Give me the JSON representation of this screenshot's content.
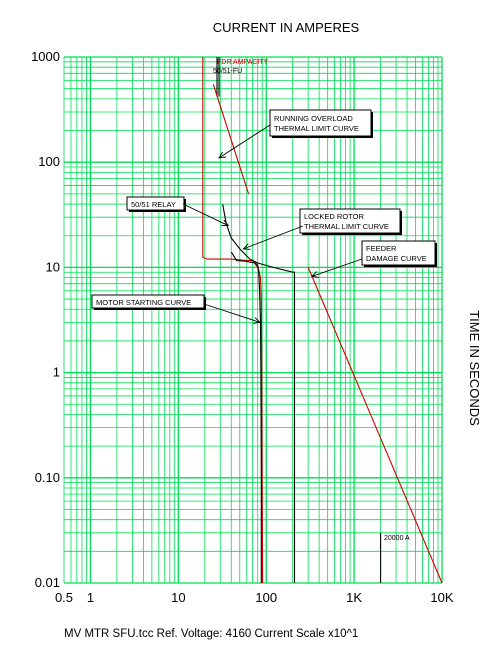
{
  "page": {
    "title": "CURRENT IN AMPERES",
    "side_title": "TIME IN SECONDS",
    "footer": "MV MTR SFU.tcc   Ref. Voltage: 4160   Current Scale x10^1"
  },
  "colors": {
    "grid": "#00dd55",
    "red_curve": "#cc0000",
    "black_curve": "#000000",
    "background": "#ffffff"
  },
  "chart_data": {
    "type": "line",
    "x_scale": "log",
    "y_scale": "log",
    "xlim": [
      0.5,
      10000
    ],
    "ylim": [
      0.01,
      1000
    ],
    "grid": true,
    "x_ticks": [
      {
        "value": 0.5,
        "label": "0.5"
      },
      {
        "value": 1,
        "label": "1"
      },
      {
        "value": 10,
        "label": "10"
      },
      {
        "value": 100,
        "label": "100"
      },
      {
        "value": 1000,
        "label": "1K"
      },
      {
        "value": 10000,
        "label": "10K"
      }
    ],
    "y_ticks": [
      {
        "value": 1000,
        "label": "1000"
      },
      {
        "value": 100,
        "label": "100"
      },
      {
        "value": 10,
        "label": "10"
      },
      {
        "value": 1,
        "label": "1"
      },
      {
        "value": 0.1,
        "label": "0.10"
      },
      {
        "value": 0.01,
        "label": "0.01"
      }
    ],
    "series": [
      {
        "color": "red",
        "points": [
          [
            19,
            1000
          ],
          [
            19,
            12.5
          ],
          [
            21,
            12
          ],
          [
            40,
            12
          ],
          [
            60,
            11.6
          ],
          [
            70,
            11.6
          ],
          [
            78,
            10.3
          ],
          [
            82,
            9.5
          ],
          [
            86,
            8
          ],
          [
            88,
            5
          ],
          [
            89,
            1
          ],
          [
            90,
            0.1
          ],
          [
            91,
            0.01
          ]
        ]
      },
      {
        "color": "black",
        "points": [
          [
            27.5,
            1000
          ],
          [
            27.5,
            420
          ]
        ]
      },
      {
        "color": "black",
        "points": [
          [
            29,
            1000
          ],
          [
            29,
            420
          ]
        ]
      },
      {
        "color": "black",
        "points": [
          [
            32,
            40
          ],
          [
            35,
            26
          ],
          [
            40,
            19
          ],
          [
            50,
            15
          ],
          [
            65,
            12
          ],
          [
            80,
            11
          ],
          [
            120,
            10
          ],
          [
            200,
            9
          ],
          [
            210,
            9
          ],
          [
            210,
            0.01
          ]
        ]
      },
      {
        "color": "black",
        "points": [
          [
            40,
            14
          ],
          [
            46,
            11.6
          ],
          [
            55,
            11.5
          ],
          [
            75,
            11
          ],
          [
            80,
            10.5
          ],
          [
            82,
            9
          ],
          [
            84,
            6
          ],
          [
            86,
            3
          ],
          [
            87,
            1
          ],
          [
            88,
            0.1
          ],
          [
            88,
            0.01
          ]
        ]
      },
      {
        "color": "red",
        "points": [
          [
            25,
            550
          ],
          [
            63,
            50
          ]
        ]
      },
      {
        "color": "red",
        "points": [
          [
            300,
            10
          ],
          [
            10000,
            0.01
          ]
        ]
      },
      {
        "color": "black",
        "points": [
          [
            2000,
            0.03
          ],
          [
            2000,
            0.01
          ]
        ]
      }
    ],
    "annotations": [
      {
        "label": "FDR AMPACITY",
        "color": "red"
      },
      {
        "label": "50/51-FU",
        "color": "black"
      },
      {
        "label": "RUNNING OVERLOAD",
        "label2": "THERMAL LIMIT CURVE",
        "boxed": true,
        "target": [
          29,
          110
        ]
      },
      {
        "label": "50/51 RELAY",
        "boxed": true,
        "target": [
          37,
          25
        ]
      },
      {
        "label": "LOCKED ROTOR",
        "label2": "THERMAL LIMIT CURVE",
        "boxed": true,
        "target": [
          55,
          15
        ]
      },
      {
        "label": "FEEDER",
        "label2": "DAMAGE CURVE",
        "boxed": true,
        "target": [
          330,
          8.2
        ]
      },
      {
        "label": "MOTOR STARTING CURVE",
        "boxed": true,
        "target": [
          85,
          3
        ]
      },
      {
        "label": "20000 A",
        "boxed": false
      }
    ]
  }
}
